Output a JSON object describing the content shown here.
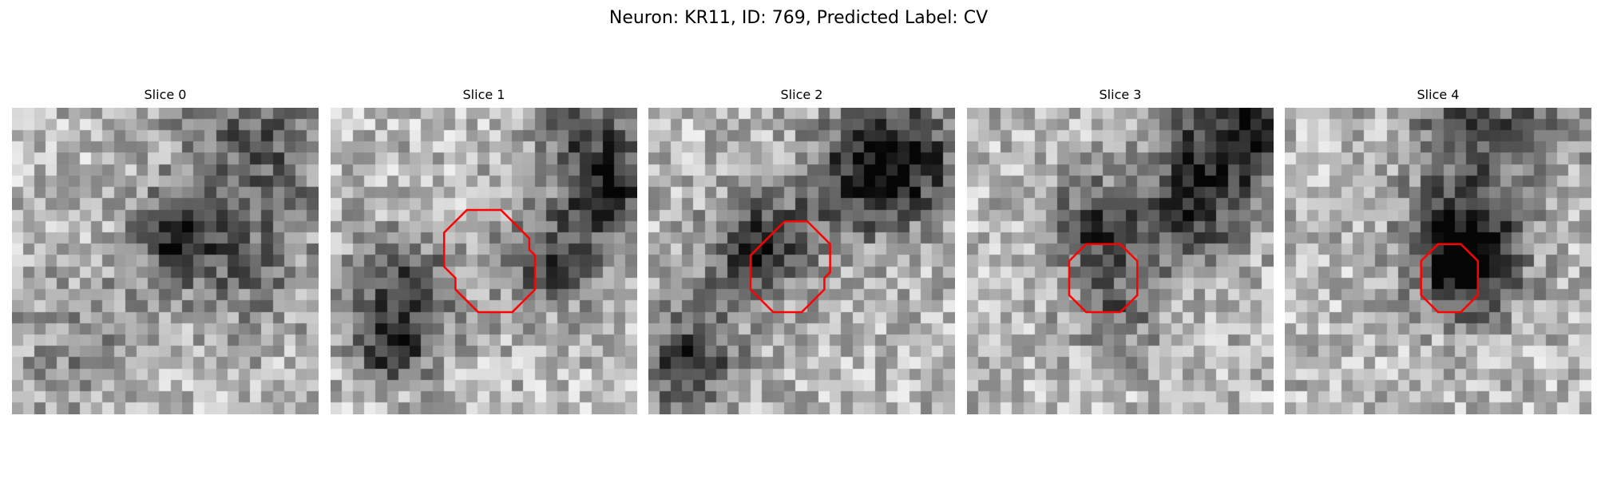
{
  "figure": {
    "title": "Neuron: KR11, ID: 769, Predicted Label: CV"
  },
  "colors": {
    "contour": "#ff0000",
    "background": "#ffffff"
  },
  "slices": [
    {
      "title": "Slice 0",
      "has_contour": false,
      "contour": []
    },
    {
      "title": "Slice 1",
      "has_contour": true,
      "contour": [
        [
          13,
          9
        ],
        [
          15,
          9
        ],
        [
          17.5,
          11.5
        ],
        [
          17.5,
          12.5
        ],
        [
          18,
          13
        ],
        [
          18,
          16
        ],
        [
          16,
          18
        ],
        [
          13,
          18
        ],
        [
          11,
          16
        ],
        [
          11,
          15
        ],
        [
          10.5,
          14.5
        ],
        [
          10,
          14
        ],
        [
          10,
          11
        ],
        [
          12,
          9
        ],
        [
          13,
          9
        ]
      ]
    },
    {
      "title": "Slice 2",
      "has_contour": true,
      "contour": [
        [
          12,
          10
        ],
        [
          14,
          10
        ],
        [
          16,
          12
        ],
        [
          16,
          14.5
        ],
        [
          15.5,
          15
        ],
        [
          15.5,
          16
        ],
        [
          13.5,
          18
        ],
        [
          11,
          18
        ],
        [
          9,
          16
        ],
        [
          9,
          13
        ],
        [
          11,
          11
        ],
        [
          12,
          10
        ]
      ]
    },
    {
      "title": "Slice 3",
      "has_contour": true,
      "contour": [
        [
          11,
          12
        ],
        [
          13.5,
          12
        ],
        [
          15,
          13.5
        ],
        [
          15,
          16.5
        ],
        [
          13.5,
          18
        ],
        [
          10.5,
          18
        ],
        [
          9,
          16.5
        ],
        [
          9,
          13.5
        ],
        [
          10.5,
          12
        ],
        [
          11,
          12
        ]
      ]
    },
    {
      "title": "Slice 4",
      "has_contour": true,
      "contour": [
        [
          14,
          12
        ],
        [
          15.5,
          12
        ],
        [
          17,
          13.5
        ],
        [
          17,
          16.5
        ],
        [
          15.5,
          18
        ],
        [
          13.5,
          18
        ],
        [
          12,
          16.5
        ],
        [
          12,
          13.5
        ],
        [
          13.5,
          12
        ],
        [
          14,
          12
        ]
      ]
    }
  ]
}
